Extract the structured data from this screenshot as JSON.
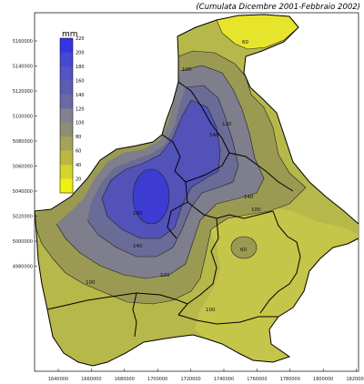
{
  "map": {
    "title": "(Cumulata Dicembre 2001-Febbraio 2002)",
    "legend": {
      "unit": "mm",
      "levels": [
        220,
        200,
        180,
        160,
        140,
        120,
        100,
        80,
        60,
        40,
        20
      ],
      "colors": [
        "#3535e0",
        "#4747d4",
        "#5454c4",
        "#5c5cb4",
        "#6a6aa5",
        "#818194",
        "#8e8e72",
        "#a3a35a",
        "#b9b941",
        "#d4d42c",
        "#f0f015"
      ]
    },
    "x_ticks": [
      "1640000",
      "1660000",
      "1680000",
      "1700000",
      "1720000",
      "1740000",
      "1760000",
      "1780000",
      "1800000",
      "1820000"
    ],
    "y_ticks": [
      "5160000",
      "5140000",
      "5120000",
      "5100000",
      "5080000",
      "5060000",
      "5040000",
      "5020000",
      "5000000",
      "4980000"
    ],
    "contour_labels": [
      "60",
      "100",
      "120",
      "140",
      "160",
      "140",
      "120",
      "100",
      "60",
      "100",
      "140",
      "100"
    ],
    "zone_colors": {
      "outer": "#b7b84a",
      "dark_olive": "#9a9a52",
      "gray": "#7e7e8c",
      "slate": "#6b6b98",
      "blue": "#5252b8",
      "deep_blue": "#3c3cd2",
      "yellow": "#e7e52b",
      "light_olive": "#c5c54a"
    }
  }
}
